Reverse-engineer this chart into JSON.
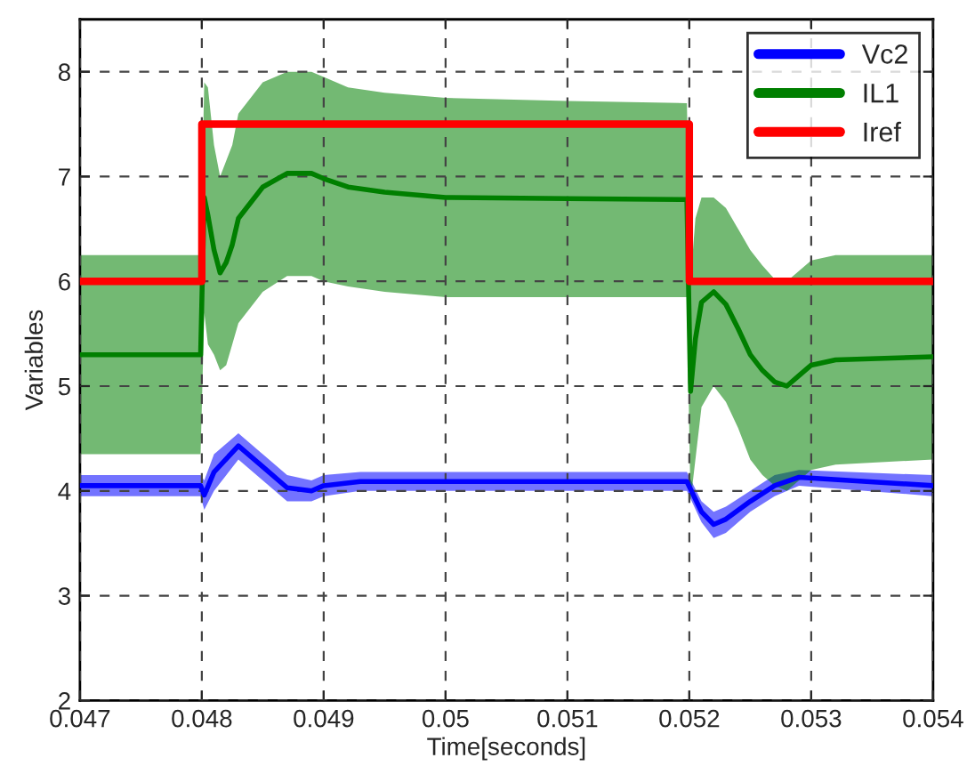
{
  "chart_data": {
    "type": "line",
    "xlabel": "Time[seconds]",
    "ylabel": "Variables",
    "xlim": [
      0.047,
      0.054
    ],
    "xticks": [
      0.047,
      0.048,
      0.049,
      0.05,
      0.051,
      0.052,
      0.053,
      0.054
    ],
    "ylim": [
      2,
      8.5
    ],
    "yticks": [
      2,
      3,
      4,
      5,
      6,
      7,
      8
    ],
    "grid": true,
    "legend": "top right",
    "marker": "none",
    "line_style": "solid",
    "series": [
      {
        "name": "Vc2",
        "color": "#0000ff",
        "x": [
          0.047,
          0.04799,
          0.04802,
          0.0481,
          0.0483,
          0.0485,
          0.0487,
          0.0489,
          0.049,
          0.0493,
          0.05198,
          0.0521,
          0.0522,
          0.0523,
          0.0525,
          0.0527,
          0.0529,
          0.054
        ],
        "values": [
          4.05,
          4.05,
          3.96,
          4.18,
          4.43,
          4.23,
          4.03,
          4.0,
          4.05,
          4.09,
          4.09,
          3.8,
          3.68,
          3.73,
          3.9,
          4.05,
          4.13,
          4.05
        ],
        "upper": [
          4.15,
          4.15,
          4.1,
          4.35,
          4.55,
          4.35,
          4.15,
          4.1,
          4.15,
          4.18,
          4.18,
          3.9,
          3.8,
          3.85,
          4.0,
          4.15,
          4.2,
          4.15
        ],
        "lower": [
          3.95,
          3.95,
          3.82,
          4.0,
          4.3,
          4.1,
          3.9,
          3.9,
          3.95,
          4.0,
          4.0,
          3.7,
          3.55,
          3.6,
          3.8,
          3.95,
          4.05,
          3.95
        ]
      },
      {
        "name": "IL1",
        "color": "#007f00",
        "x": [
          0.047,
          0.04799,
          0.04802,
          0.04805,
          0.0481,
          0.04815,
          0.0482,
          0.04825,
          0.0483,
          0.0485,
          0.0487,
          0.0489,
          0.049,
          0.0492,
          0.0495,
          0.05,
          0.051,
          0.05198,
          0.05201,
          0.05205,
          0.0521,
          0.0522,
          0.0523,
          0.0524,
          0.0525,
          0.0526,
          0.0527,
          0.0528,
          0.0529,
          0.053,
          0.0532,
          0.054
        ],
        "values": [
          5.3,
          5.3,
          6.8,
          6.63,
          6.3,
          6.08,
          6.18,
          6.35,
          6.6,
          6.9,
          7.03,
          7.03,
          6.98,
          6.9,
          6.85,
          6.8,
          6.79,
          6.78,
          4.95,
          5.45,
          5.8,
          5.9,
          5.78,
          5.55,
          5.3,
          5.15,
          5.04,
          5.0,
          5.1,
          5.2,
          5.25,
          5.28
        ],
        "upper": [
          6.25,
          6.25,
          7.9,
          7.85,
          7.3,
          7.0,
          7.15,
          7.3,
          7.6,
          7.9,
          8.0,
          8.0,
          7.95,
          7.85,
          7.8,
          7.75,
          7.72,
          7.7,
          6.0,
          6.6,
          6.8,
          6.8,
          6.7,
          6.5,
          6.3,
          6.15,
          6.02,
          6.0,
          6.1,
          6.2,
          6.25,
          6.25
        ],
        "lower": [
          4.35,
          4.35,
          5.7,
          5.4,
          5.3,
          5.15,
          5.2,
          5.4,
          5.6,
          5.9,
          6.05,
          6.05,
          6.0,
          5.95,
          5.9,
          5.85,
          5.85,
          5.85,
          3.9,
          4.3,
          4.8,
          5.0,
          4.85,
          4.6,
          4.3,
          4.15,
          4.05,
          4.0,
          4.1,
          4.2,
          4.25,
          4.3
        ]
      },
      {
        "name": "Iref",
        "color": "#ff0000",
        "x": [
          0.047,
          0.048,
          0.048,
          0.052,
          0.052,
          0.054
        ],
        "values": [
          6,
          6,
          7.5,
          7.5,
          6,
          6
        ]
      }
    ]
  }
}
